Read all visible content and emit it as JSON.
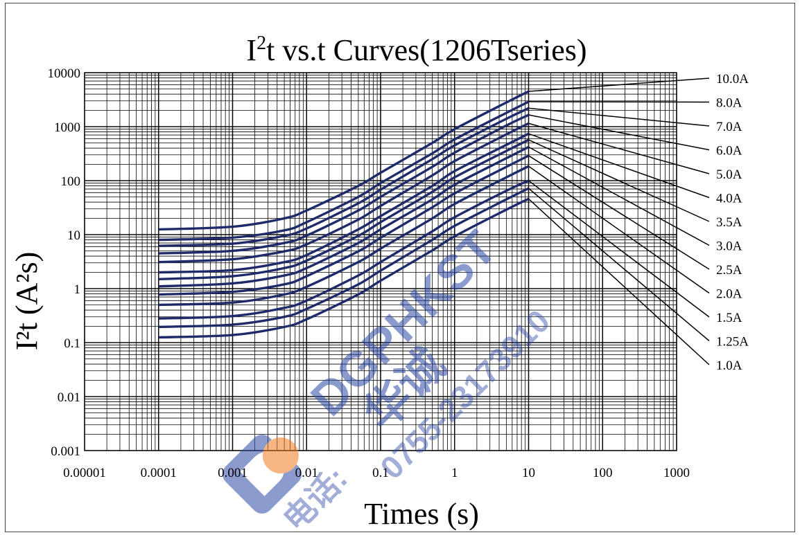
{
  "chart_data": {
    "type": "line",
    "title": "I²t vs.t Curves(1206Tseries)",
    "title_parts": {
      "base": "I",
      "sup": "2",
      "rest": "t  vs.t  Curves(1206Tseries)"
    },
    "xlabel": "Times (s)",
    "ylabel": "I²t (A²s)",
    "x_scale": "log",
    "y_scale": "log",
    "xlim": [
      1e-05,
      1000
    ],
    "ylim": [
      0.001,
      10000
    ],
    "x_tick_labels": [
      "0.00001",
      "0.0001",
      "0.001",
      "0.01",
      "0.1",
      "1",
      "10",
      "100",
      "1000"
    ],
    "y_tick_labels": [
      "10000",
      "1000",
      "100",
      "10",
      "1",
      "0.1",
      "0.01",
      "0.001"
    ],
    "grid": true,
    "line_color": "#1f2a6b",
    "x": [
      0.0001,
      0.001,
      0.005,
      0.01,
      0.05,
      0.1,
      0.5,
      1,
      5,
      10
    ],
    "series": [
      {
        "name": "10.0A",
        "values": [
          12.5,
          14,
          20,
          28,
          80,
          140,
          500,
          900,
          2800,
          4500
        ]
      },
      {
        "name": "8.0A",
        "values": [
          8.0,
          8.8,
          12,
          17,
          50,
          90,
          320,
          580,
          1800,
          2900
        ]
      },
      {
        "name": "7.0A",
        "values": [
          6.2,
          6.8,
          9.5,
          13,
          38,
          68,
          250,
          450,
          1400,
          2200
        ]
      },
      {
        "name": "6.0A",
        "values": [
          4.5,
          5.0,
          7.0,
          9.6,
          28,
          50,
          180,
          330,
          1050,
          1650
        ]
      },
      {
        "name": "5.0A",
        "values": [
          3.1,
          3.5,
          4.9,
          6.6,
          19,
          34,
          125,
          230,
          720,
          1150
        ]
      },
      {
        "name": "4.0A",
        "values": [
          2.0,
          2.2,
          3.1,
          4.2,
          12.5,
          22,
          80,
          150,
          460,
          740
        ]
      },
      {
        "name": "3.5A",
        "values": [
          1.5,
          1.7,
          2.4,
          3.3,
          9.5,
          17,
          62,
          115,
          355,
          570
        ]
      },
      {
        "name": "3.0A",
        "values": [
          1.1,
          1.25,
          1.75,
          2.4,
          7.0,
          12.5,
          45,
          84,
          260,
          420
        ]
      },
      {
        "name": "2.5A",
        "values": [
          0.78,
          0.87,
          1.2,
          1.7,
          4.9,
          8.7,
          32,
          58,
          180,
          290
        ]
      },
      {
        "name": "2.0A",
        "values": [
          0.5,
          0.55,
          0.78,
          1.08,
          3.1,
          5.5,
          20,
          37,
          115,
          185
        ]
      },
      {
        "name": "1.5A",
        "values": [
          0.28,
          0.31,
          0.44,
          0.6,
          1.75,
          3.1,
          11.5,
          21,
          65,
          100
        ]
      },
      {
        "name": "1.25A",
        "values": [
          0.195,
          0.215,
          0.3,
          0.42,
          1.2,
          2.15,
          8.0,
          14.5,
          45,
          72
        ]
      },
      {
        "name": "1.0A",
        "values": [
          0.125,
          0.138,
          0.195,
          0.27,
          0.78,
          1.4,
          5.1,
          9.3,
          29,
          46
        ]
      }
    ]
  },
  "watermark": {
    "brand": "DGPHKST",
    "chinese": "华诚",
    "phone": "0755-23173910",
    "tel_prefix": "电话:",
    "colors": {
      "blue": "#2e49a6",
      "orange": "#f07820"
    }
  }
}
